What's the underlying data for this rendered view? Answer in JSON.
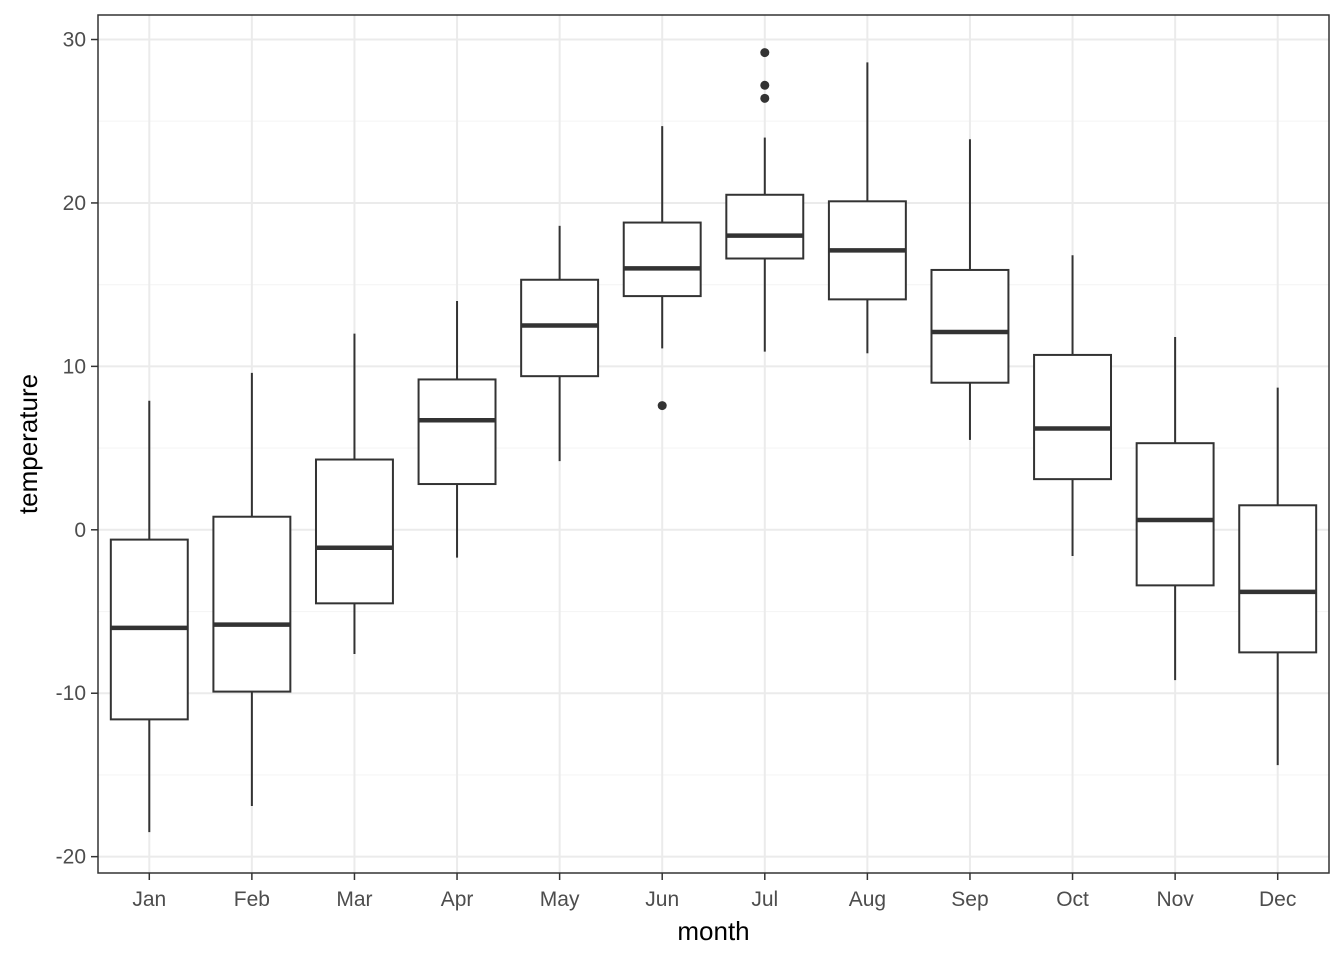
{
  "chart_data": {
    "type": "boxplot",
    "xlabel": "month",
    "ylabel": "temperature",
    "ylim": [
      -21,
      31.5
    ],
    "y_major_ticks": [
      -20,
      -10,
      0,
      10,
      20,
      30
    ],
    "y_minor_ticks": [
      -15,
      -5,
      5,
      15,
      25
    ],
    "grid": true,
    "theme": "black-and-white",
    "categories": [
      "Jan",
      "Feb",
      "Mar",
      "Apr",
      "May",
      "Jun",
      "Jul",
      "Aug",
      "Sep",
      "Oct",
      "Nov",
      "Dec"
    ],
    "boxes": [
      {
        "category": "Jan",
        "min": -18.5,
        "q1": -11.6,
        "median": -6.0,
        "q3": -0.6,
        "max": 7.9,
        "outliers": []
      },
      {
        "category": "Feb",
        "min": -16.9,
        "q1": -9.9,
        "median": -5.8,
        "q3": 0.8,
        "max": 9.6,
        "outliers": []
      },
      {
        "category": "Mar",
        "min": -7.6,
        "q1": -4.5,
        "median": -1.1,
        "q3": 4.3,
        "max": 12.0,
        "outliers": []
      },
      {
        "category": "Apr",
        "min": -1.7,
        "q1": 2.8,
        "median": 6.7,
        "q3": 9.2,
        "max": 14.0,
        "outliers": []
      },
      {
        "category": "May",
        "min": 4.2,
        "q1": 9.4,
        "median": 12.5,
        "q3": 15.3,
        "max": 18.6,
        "outliers": []
      },
      {
        "category": "Jun",
        "min": 11.1,
        "q1": 14.3,
        "median": 16.0,
        "q3": 18.8,
        "max": 24.7,
        "outliers": [
          7.6
        ]
      },
      {
        "category": "Jul",
        "min": 10.9,
        "q1": 16.6,
        "median": 18.0,
        "q3": 20.5,
        "max": 24.0,
        "outliers": [
          26.4,
          27.2,
          29.2
        ]
      },
      {
        "category": "Aug",
        "min": 10.8,
        "q1": 14.1,
        "median": 17.1,
        "q3": 20.1,
        "max": 28.6,
        "outliers": []
      },
      {
        "category": "Sep",
        "min": 5.5,
        "q1": 9.0,
        "median": 12.1,
        "q3": 15.9,
        "max": 23.9,
        "outliers": []
      },
      {
        "category": "Oct",
        "min": -1.6,
        "q1": 3.1,
        "median": 6.2,
        "q3": 10.7,
        "max": 16.8,
        "outliers": []
      },
      {
        "category": "Nov",
        "min": -9.2,
        "q1": -3.4,
        "median": 0.6,
        "q3": 5.3,
        "max": 11.8,
        "outliers": []
      },
      {
        "category": "Dec",
        "min": -14.4,
        "q1": -7.5,
        "median": -3.8,
        "q3": 1.5,
        "max": 8.7,
        "outliers": []
      }
    ],
    "colors": {
      "box_stroke": "#333333",
      "median": "#333333",
      "box_fill": "#ffffff",
      "grid_major": "#ebebeb",
      "grid_minor": "#f5f5f5",
      "panel_border": "#333333",
      "tick_label": "#4d4d4d"
    }
  }
}
